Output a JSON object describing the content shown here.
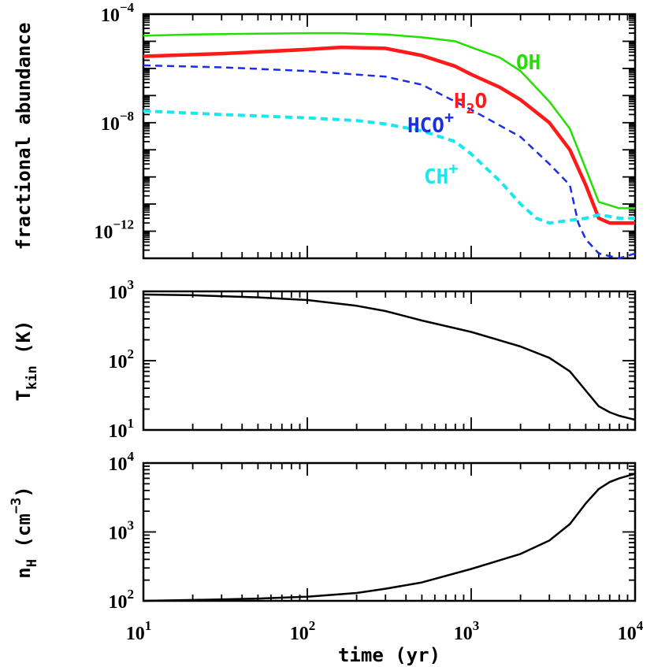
{
  "chart_data": [
    {
      "type": "line",
      "panel": "abundance",
      "ylabel": "fractional abundance",
      "xscale": "log",
      "yscale": "log",
      "xlim": [
        10,
        10000
      ],
      "ylim": [
        1e-13,
        0.0001
      ],
      "y_ticks": [
        {
          "base": "10",
          "exp": "−4",
          "value": 0.0001
        },
        {
          "base": "10",
          "exp": "−8",
          "value": 1e-08
        },
        {
          "base": "10",
          "exp": "−12",
          "value": 1e-12
        }
      ],
      "series": [
        {
          "name": "OH",
          "label_base": "OH",
          "label_sub": "",
          "label_sup": "",
          "color": "#22e000",
          "dash": "solid",
          "width": 2.5,
          "x": [
            10,
            20,
            50,
            100,
            160,
            300,
            500,
            800,
            1000,
            1500,
            2000,
            3000,
            4000,
            5000,
            6000,
            8000,
            10000
          ],
          "y": [
            1.6e-05,
            1.8e-05,
            1.9e-05,
            2e-05,
            2e-05,
            1.8e-05,
            1.4e-05,
            1e-05,
            6e-06,
            2.5e-06,
            8e-07,
            6e-08,
            6e-09,
            2e-10,
            1.2e-11,
            7e-12,
            7e-12
          ]
        },
        {
          "name": "H2O",
          "label_base": "H",
          "label_sub": "2",
          "label_sup": "",
          "label_tail": "O",
          "color": "#ff1a1a",
          "dash": "solid",
          "width": 4.5,
          "x": [
            10,
            30,
            100,
            160,
            300,
            500,
            800,
            1000,
            1500,
            2000,
            3000,
            4000,
            5000,
            6000,
            7000,
            10000
          ],
          "y": [
            2.8e-06,
            3.5e-06,
            5e-06,
            6e-06,
            5.5e-06,
            3e-06,
            1.2e-06,
            6e-07,
            2e-07,
            7e-08,
            1e-08,
            1e-09,
            5e-11,
            3e-12,
            2e-12,
            2e-12
          ]
        },
        {
          "name": "HCO+",
          "label_base": "HCO",
          "label_sub": "",
          "label_sup": "+",
          "color": "#1a2ee6",
          "dash": "dashed",
          "width": 2.5,
          "x": [
            10,
            30,
            100,
            300,
            500,
            1000,
            2000,
            3000,
            4000,
            4500,
            5000,
            6000,
            8000,
            10000
          ],
          "y": [
            1.3e-06,
            1.1e-06,
            8e-07,
            5e-07,
            2.5e-07,
            3e-08,
            3e-09,
            3e-10,
            5e-11,
            2e-12,
            5e-13,
            1.5e-13,
            1e-13,
            1.5e-13
          ]
        },
        {
          "name": "CH+",
          "label_base": "CH",
          "label_sub": "",
          "label_sup": "+",
          "color": "#19e6ee",
          "dash": "dashed",
          "width": 4,
          "x": [
            10,
            30,
            100,
            200,
            300,
            500,
            800,
            1000,
            1500,
            2000,
            2500,
            3000,
            4000,
            5000,
            6000,
            7000,
            8000,
            10000
          ],
          "y": [
            2.7e-08,
            2e-08,
            1.5e-08,
            1.2e-08,
            9e-09,
            5e-09,
            2e-09,
            7e-10,
            7e-11,
            1e-11,
            3e-12,
            2e-12,
            2.5e-12,
            3e-12,
            4e-12,
            3.5e-12,
            3e-12,
            3e-12
          ]
        }
      ]
    },
    {
      "type": "line",
      "panel": "temperature",
      "ylabel_base": "T",
      "ylabel_sub": "kin",
      "ylabel_unit": "(K)",
      "xscale": "log",
      "yscale": "log",
      "xlim": [
        10,
        10000
      ],
      "ylim": [
        10,
        1000
      ],
      "y_ticks": [
        {
          "base": "10",
          "exp": "3",
          "value": 1000
        },
        {
          "base": "10",
          "exp": "2",
          "value": 100
        },
        {
          "base": "10",
          "exp": "1",
          "value": 10
        }
      ],
      "series": [
        {
          "name": "",
          "color": "#000000",
          "dash": "solid",
          "width": 2.5,
          "x": [
            10,
            20,
            50,
            100,
            200,
            300,
            500,
            1000,
            2000,
            3000,
            4000,
            5000,
            6000,
            7000,
            8000,
            10000
          ],
          "y": [
            900,
            880,
            820,
            750,
            620,
            520,
            380,
            260,
            160,
            110,
            70,
            37,
            22,
            18,
            16,
            14
          ]
        }
      ]
    },
    {
      "type": "line",
      "panel": "density",
      "ylabel_base": "n",
      "ylabel_sub": "H",
      "ylabel_unit": "(cm",
      "ylabel_sup": "−3",
      "ylabel_close": ")",
      "xlabel": "time (yr)",
      "xscale": "log",
      "yscale": "log",
      "xlim": [
        10,
        10000
      ],
      "ylim": [
        100,
        10000
      ],
      "x_ticks": [
        {
          "base": "10",
          "exp": "1",
          "value": 10
        },
        {
          "base": "10",
          "exp": "2",
          "value": 100
        },
        {
          "base": "10",
          "exp": "3",
          "value": 1000
        },
        {
          "base": "10",
          "exp": "4",
          "value": 10000
        }
      ],
      "y_ticks": [
        {
          "base": "10",
          "exp": "4",
          "value": 10000
        },
        {
          "base": "10",
          "exp": "3",
          "value": 1000
        },
        {
          "base": "10",
          "exp": "2",
          "value": 100
        }
      ],
      "series": [
        {
          "name": "",
          "color": "#000000",
          "dash": "solid",
          "width": 2.5,
          "x": [
            10,
            20,
            50,
            100,
            200,
            300,
            500,
            1000,
            2000,
            3000,
            4000,
            5000,
            6000,
            7000,
            8000,
            10000
          ],
          "y": [
            100,
            103,
            108,
            115,
            130,
            150,
            185,
            290,
            480,
            750,
            1300,
            2600,
            4200,
            5300,
            6000,
            7000
          ]
        }
      ]
    }
  ]
}
